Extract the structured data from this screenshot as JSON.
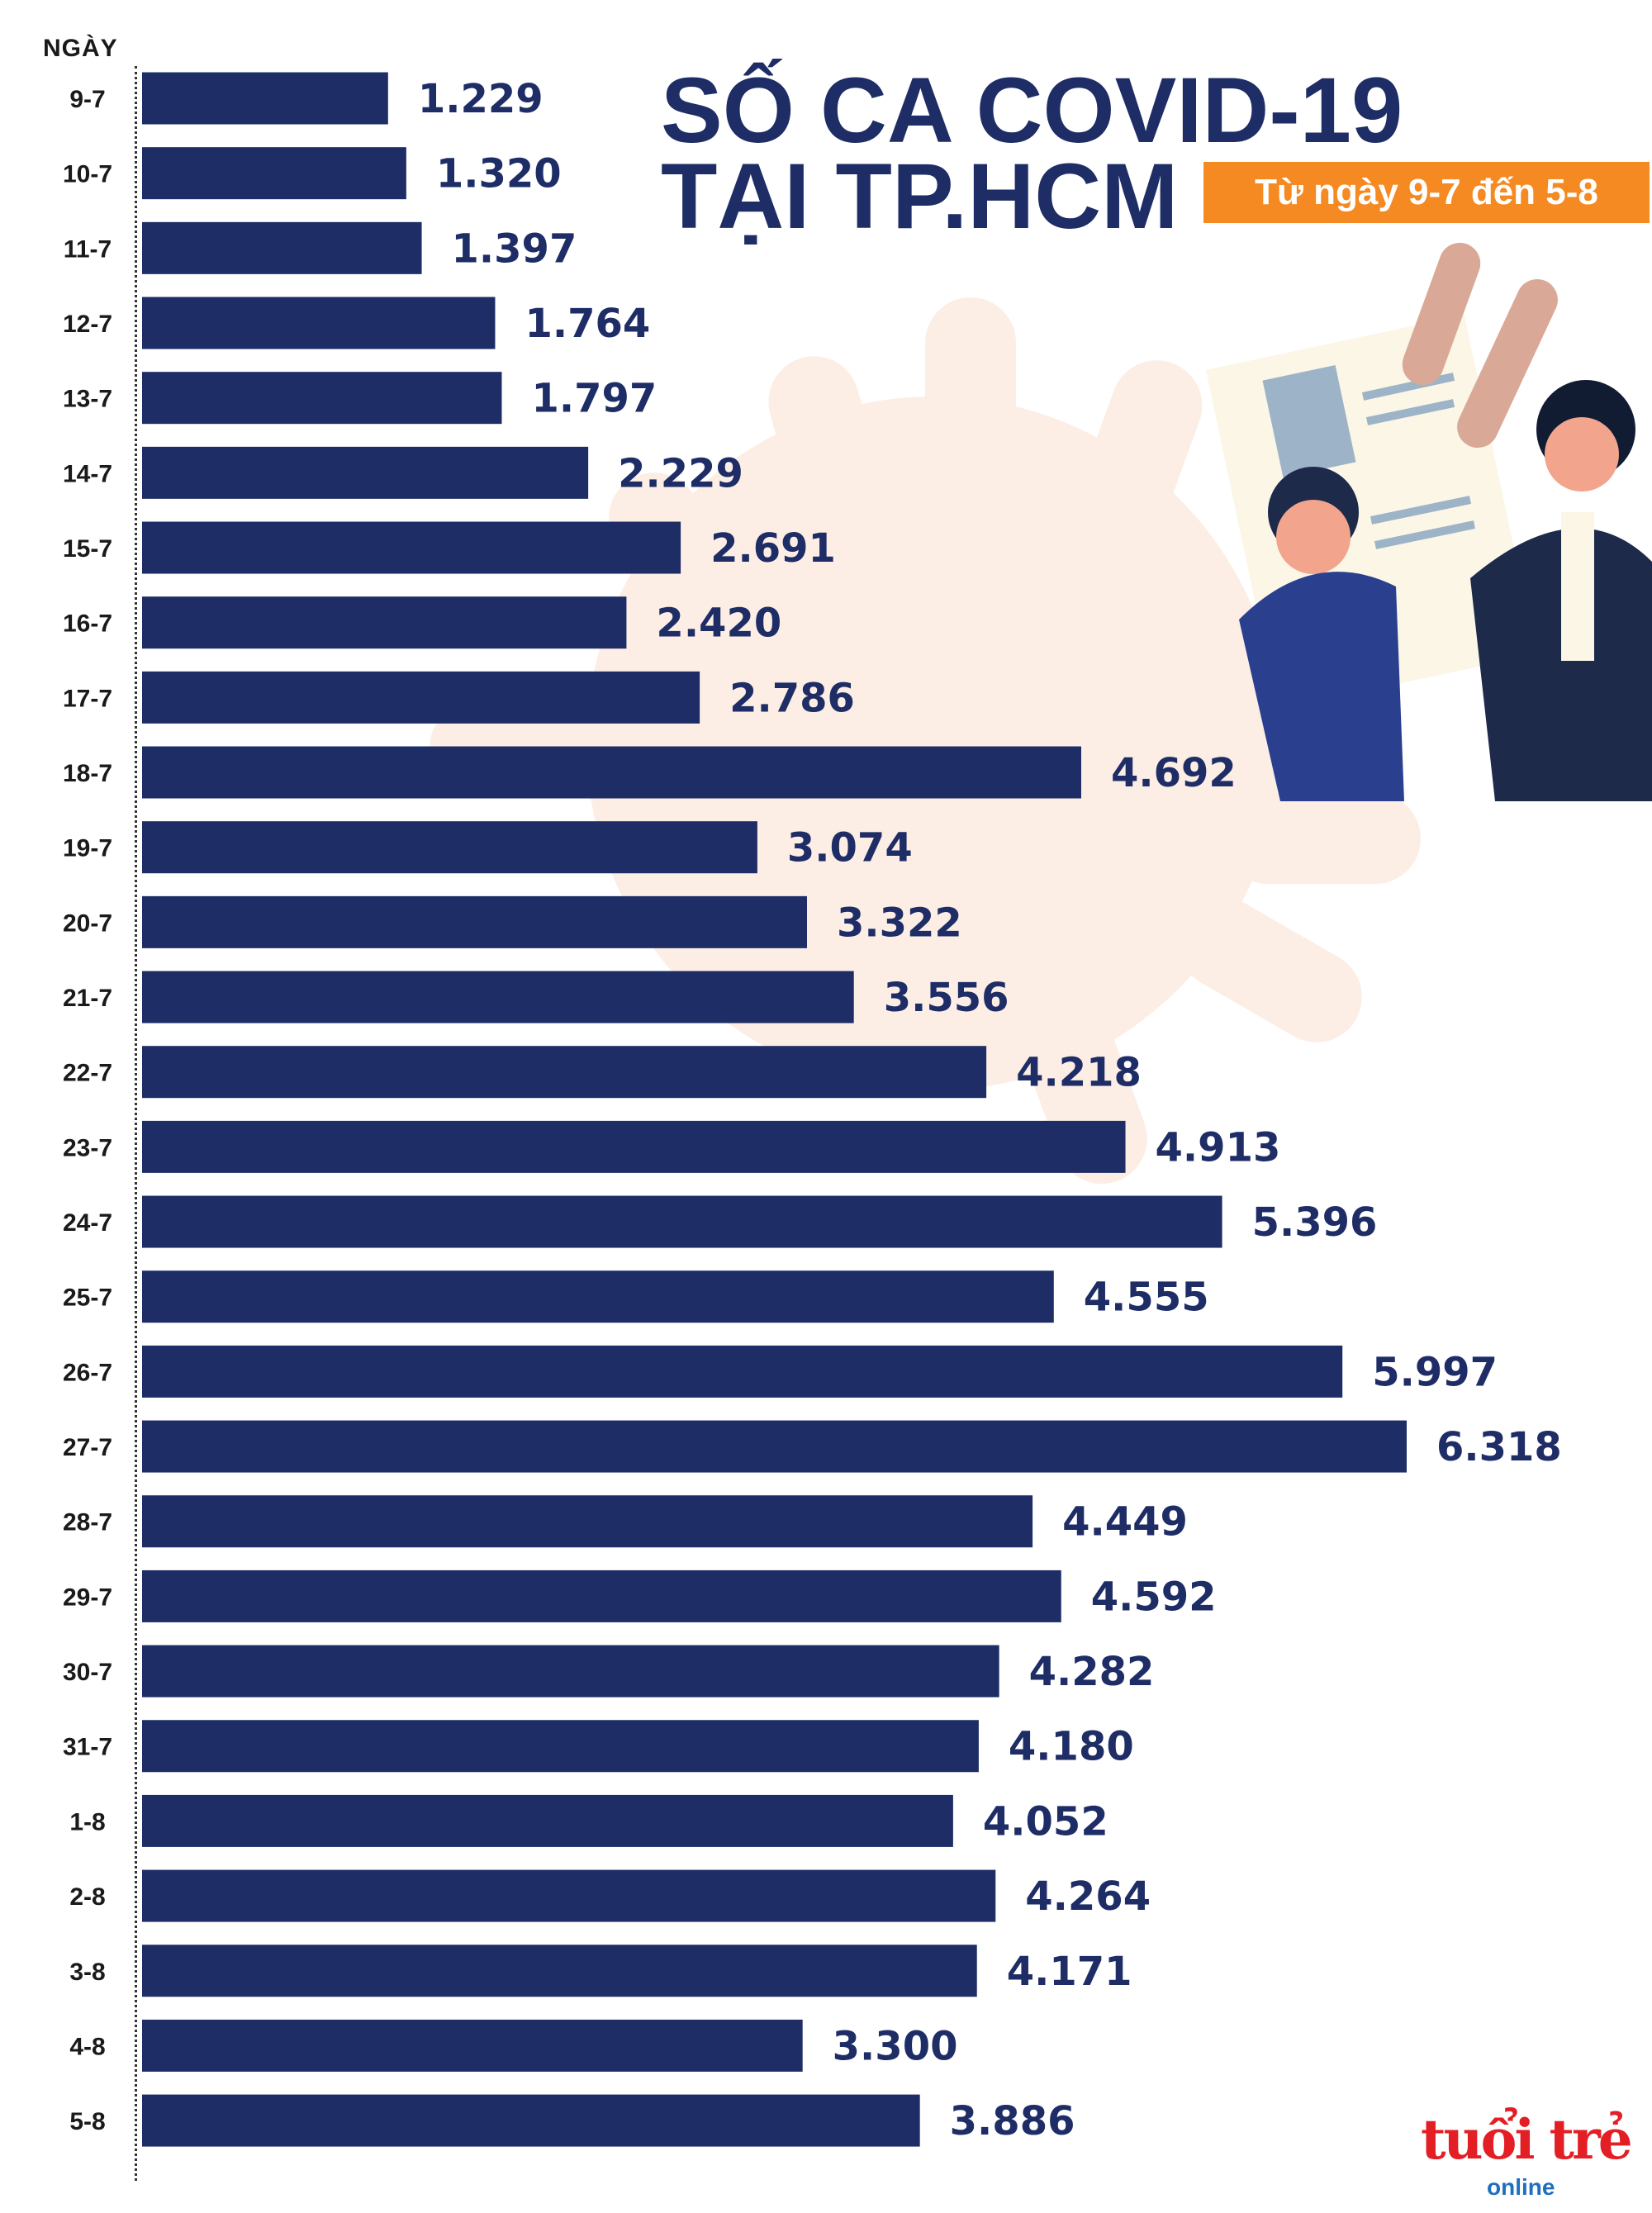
{
  "title_line1": "SỐ CA COVID-19",
  "title_line2": "TẠI TP.HCM",
  "subtitle": "Từ ngày 9-7 đến 5-8",
  "brand": {
    "logo_main": "tuổi trẻ",
    "logo_sub": "online"
  },
  "colors": {
    "bar": "#1e2d66",
    "accent": "#f58a23",
    "virus": "#fbe3d4",
    "logo_red": "#e31e24",
    "logo_blue": "#1f6fc0"
  },
  "chart_data": {
    "type": "bar",
    "orientation": "horizontal",
    "title": "SỐ CA COVID-19 TẠI TP.HCM",
    "subtitle": "Từ ngày 9-7 đến 5-8",
    "ylabel": "NGÀY",
    "xlabel": "",
    "categories": [
      "9-7",
      "10-7",
      "11-7",
      "12-7",
      "13-7",
      "14-7",
      "15-7",
      "16-7",
      "17-7",
      "18-7",
      "19-7",
      "20-7",
      "21-7",
      "22-7",
      "23-7",
      "24-7",
      "25-7",
      "26-7",
      "27-7",
      "28-7",
      "29-7",
      "30-7",
      "31-7",
      "1-8",
      "2-8",
      "3-8",
      "4-8",
      "5-8"
    ],
    "values": [
      1229,
      1320,
      1397,
      1764,
      1797,
      2229,
      2691,
      2420,
      2786,
      4692,
      3074,
      3322,
      3556,
      4218,
      4913,
      5396,
      4555,
      5997,
      6318,
      4449,
      4592,
      4282,
      4180,
      4052,
      4264,
      4171,
      3300,
      3886
    ],
    "value_labels": [
      "1.229",
      "1.320",
      "1.397",
      "1.764",
      "1.797",
      "2.229",
      "2.691",
      "2.420",
      "2.786",
      "4.692",
      "3.074",
      "3.322",
      "3.556",
      "4.218",
      "4.913",
      "5.396",
      "4.555",
      "5.997",
      "6.318",
      "4.449",
      "4.592",
      "4.282",
      "4.180",
      "4.052",
      "4.264",
      "4.171",
      "3.300",
      "3.886"
    ],
    "xlim": [
      0,
      6318
    ],
    "grid": false,
    "legend": "none"
  }
}
